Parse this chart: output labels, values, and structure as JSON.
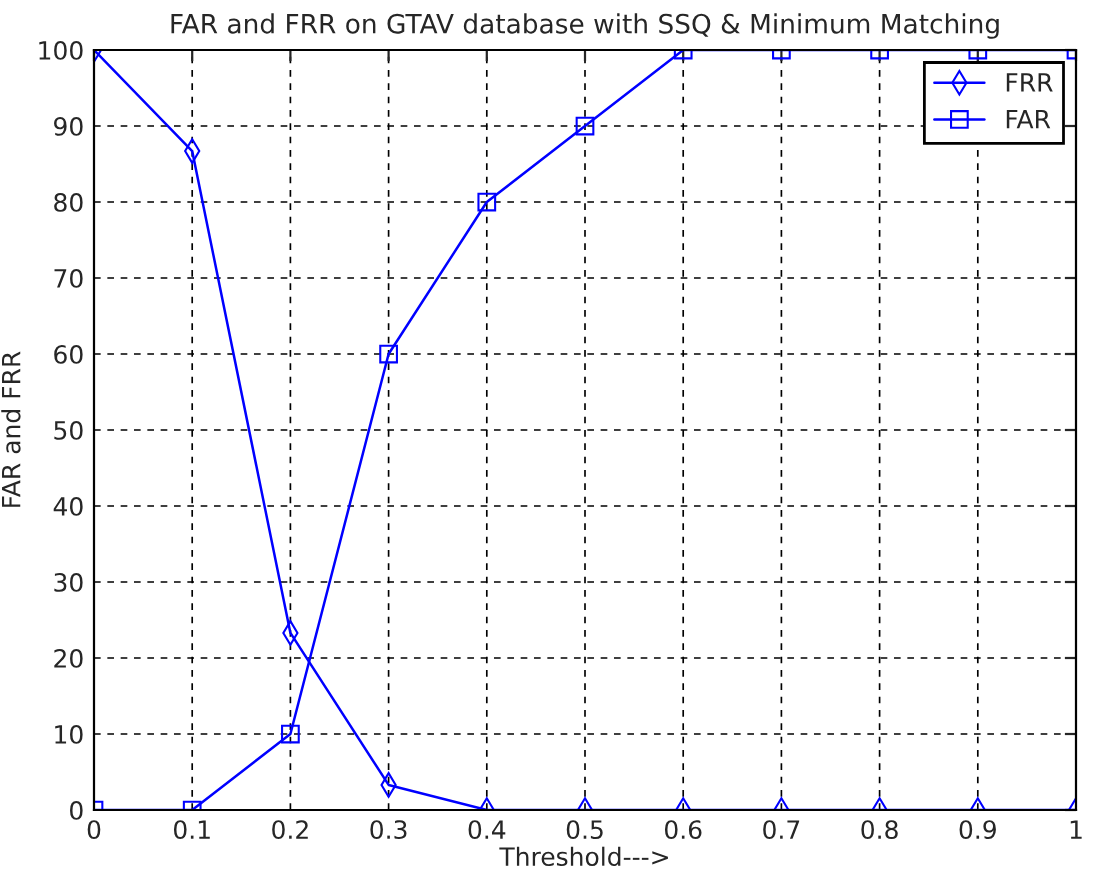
{
  "chart_data": {
    "type": "line",
    "title": "FAR and FRR on GTAV database with SSQ & Minimum Matching",
    "xlabel": "Threshold--->",
    "ylabel": "FAR and FRR",
    "x": [
      0,
      0.1,
      0.2,
      0.3,
      0.4,
      0.5,
      0.6,
      0.7,
      0.8,
      0.9,
      1
    ],
    "series": [
      {
        "name": "FRR",
        "color": "#0000ff",
        "marker": "diamond",
        "values": [
          100,
          86.7,
          23.3,
          3.3,
          0,
          0,
          0,
          0,
          0,
          0,
          0
        ]
      },
      {
        "name": "FAR",
        "color": "#0000ff",
        "marker": "square",
        "values": [
          0,
          0,
          10,
          60,
          80,
          90,
          100,
          100,
          100,
          100,
          100
        ]
      }
    ],
    "xlim": [
      0,
      1
    ],
    "xticks": [
      0,
      0.1,
      0.2,
      0.3,
      0.4,
      0.5,
      0.6,
      0.7,
      0.8,
      0.9,
      1
    ],
    "ylim": [
      0,
      100
    ],
    "yticks": [
      0,
      10,
      20,
      30,
      40,
      50,
      60,
      70,
      80,
      90,
      100
    ],
    "grid": true,
    "legend": "top right",
    "line_style": "solid"
  }
}
